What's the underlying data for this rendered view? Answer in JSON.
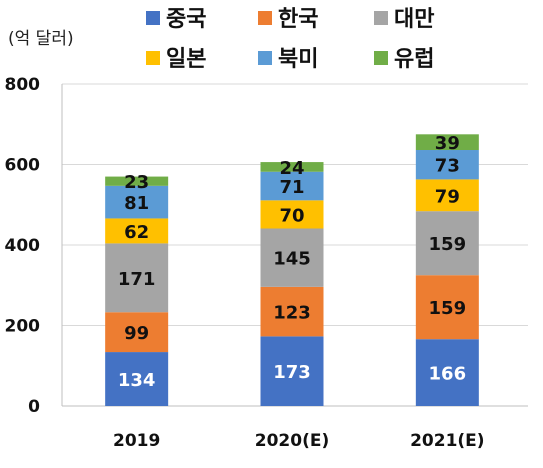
{
  "chart_data": {
    "type": "bar",
    "stacked": true,
    "unit": "(억 달러)",
    "title": "",
    "xlabel": "",
    "ylabel": "",
    "categories": [
      "2019",
      "2020(E)",
      "2021(E)"
    ],
    "ylim": [
      0,
      800
    ],
    "yticks": [
      0,
      200,
      400,
      600,
      800
    ],
    "grid": true,
    "legend_position": "top",
    "series": [
      {
        "name": "중국",
        "color": "#4472C4",
        "label_color": "#ffffff",
        "values": [
          134,
          173,
          166
        ]
      },
      {
        "name": "한국",
        "color": "#ED7D31",
        "label_color": "#111111",
        "values": [
          99,
          123,
          159
        ]
      },
      {
        "name": "대만",
        "color": "#A5A5A5",
        "label_color": "#111111",
        "values": [
          171,
          145,
          159
        ]
      },
      {
        "name": "일본",
        "color": "#FFC000",
        "label_color": "#111111",
        "values": [
          62,
          70,
          79
        ]
      },
      {
        "name": "북미",
        "color": "#5B9BD5",
        "label_color": "#111111",
        "values": [
          81,
          71,
          73
        ]
      },
      {
        "name": "유럽",
        "color": "#70AD47",
        "label_color": "#111111",
        "values": [
          23,
          24,
          39
        ]
      }
    ]
  }
}
